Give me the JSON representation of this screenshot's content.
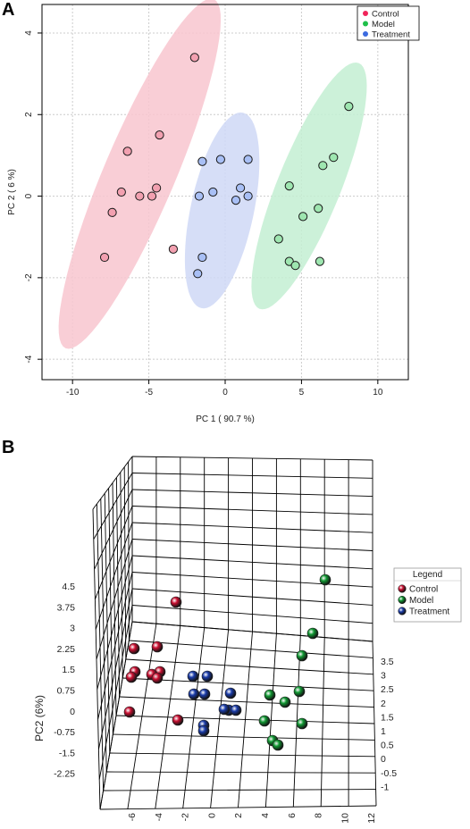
{
  "chart_data": [
    {
      "panel": "A",
      "type": "scatter",
      "title": "",
      "xlabel": "PC 1 ( 90.7 %)",
      "ylabel": "PC 2 ( 6 %)",
      "xlim": [
        -12,
        12
      ],
      "ylim": [
        -4.5,
        4.7
      ],
      "xticks": [
        -10,
        -5,
        0,
        5,
        10
      ],
      "yticks": [
        -4,
        -2,
        0,
        2,
        4
      ],
      "grid": true,
      "legend_position": "top-right",
      "series": [
        {
          "name": "Control",
          "legend_color": "#f0245a",
          "fill": "#f2a0b0",
          "ellipse_color": "#f8c6cf",
          "points": [
            [
              -2,
              3.4
            ],
            [
              -4.3,
              1.5
            ],
            [
              -6.4,
              1.1
            ],
            [
              -4.5,
              0.2
            ],
            [
              -6.8,
              0.1
            ],
            [
              -5.6,
              0
            ],
            [
              -4.8,
              0
            ],
            [
              -7.4,
              -0.4
            ],
            [
              -3.4,
              -1.3
            ],
            [
              -7.9,
              -1.5
            ]
          ]
        },
        {
          "name": "Model",
          "legend_color": "#1fbf4a",
          "fill": "#9ee6b0",
          "ellipse_color": "#c3efd2",
          "points": [
            [
              8.1,
              2.2
            ],
            [
              7.1,
              0.95
            ],
            [
              6.4,
              0.75
            ],
            [
              4.2,
              0.25
            ],
            [
              6.1,
              -0.3
            ],
            [
              5.1,
              -0.5
            ],
            [
              3.5,
              -1.05
            ],
            [
              4.2,
              -1.6
            ],
            [
              4.6,
              -1.7
            ],
            [
              6.2,
              -1.6
            ]
          ]
        },
        {
          "name": "Treatment",
          "legend_color": "#3c6be0",
          "fill": "#a8bff5",
          "ellipse_color": "#cfd8f6",
          "points": [
            [
              -1.5,
              0.85
            ],
            [
              -0.3,
              0.9
            ],
            [
              1.5,
              0.9
            ],
            [
              -0.8,
              0.1
            ],
            [
              1.0,
              0.2
            ],
            [
              -1.7,
              0
            ],
            [
              1.5,
              0
            ],
            [
              0.7,
              -0.1
            ],
            [
              -1.5,
              -1.5
            ],
            [
              -1.8,
              -1.9
            ]
          ]
        }
      ],
      "ellipses": [
        {
          "series": "Control",
          "cx": -5.6,
          "cy": 0.55,
          "rx": 9.3,
          "ry": 1.75,
          "angle_deg": 67
        },
        {
          "series": "Treatment",
          "cx": -0.2,
          "cy": -0.35,
          "rx": 4.9,
          "ry": 1.55,
          "angle_deg": 78
        },
        {
          "series": "Model",
          "cx": 5.5,
          "cy": 0.25,
          "rx": 6.5,
          "ry": 1.55,
          "angle_deg": 68
        }
      ]
    },
    {
      "panel": "B",
      "type": "scatter",
      "projection": "3d",
      "title": "",
      "ylabel": "PC2 (6%)",
      "zticks": [
        "4.5",
        "3.75",
        "3",
        "2.25",
        "1.5",
        "0.75",
        "0",
        "-0.75",
        "-1.5",
        "-2.25"
      ],
      "xticks": [
        "-6",
        "-4",
        "-2",
        "0",
        "2",
        "4",
        "6",
        "8",
        "10",
        "12"
      ],
      "depth_ticks": [
        "3.5",
        "3",
        "2.5",
        "2",
        "1.5",
        "1",
        "0.5",
        "0",
        "-0.5",
        "-1"
      ],
      "legend_title": "Legend",
      "legend_position": "right",
      "series": [
        {
          "name": "Control",
          "color": "#cc1133"
        },
        {
          "name": "Model",
          "color": "#119933"
        },
        {
          "name": "Treatment",
          "color": "#1a3caa"
        }
      ]
    }
  ],
  "panel_labels": {
    "a": "A",
    "b": "B"
  }
}
